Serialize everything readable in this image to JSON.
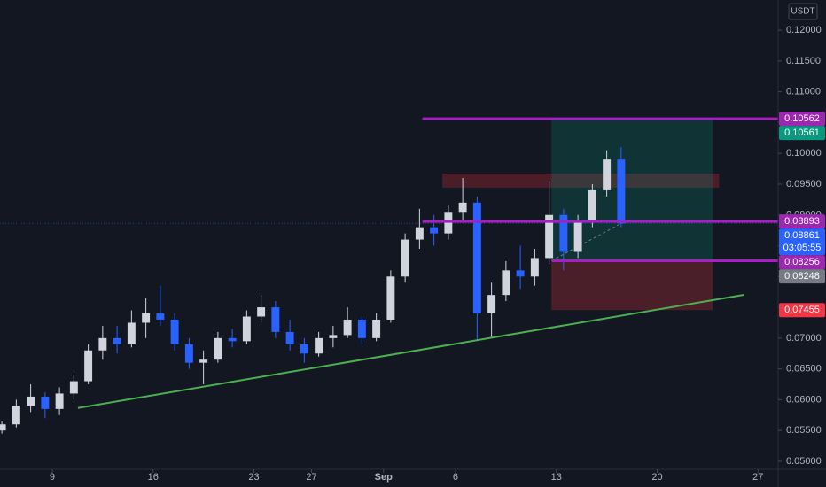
{
  "chart_data": {
    "type": "candlestick",
    "currency": "USDT",
    "x": [
      5.5,
      6.5,
      7.5,
      8.5,
      9.5,
      10.5,
      11.5,
      12.5,
      13.5,
      14.5,
      15.5,
      16.5,
      17.5,
      18.5,
      19.5,
      20.5,
      21.5,
      22.5,
      23.5,
      24.5,
      25.5,
      26.5,
      27.5,
      28.5,
      29.5,
      30.5,
      31.5,
      32.5,
      33.5,
      34.5,
      35.5,
      36.5,
      37.5,
      38.5,
      39.5,
      40.5,
      41.5,
      42.5,
      43.5,
      44.5,
      45.5,
      46.5,
      47.5,
      48.5
    ],
    "open": [
      0.055,
      0.056,
      0.059,
      0.0605,
      0.0585,
      0.061,
      0.063,
      0.068,
      0.07,
      0.069,
      0.0725,
      0.074,
      0.073,
      0.069,
      0.066,
      0.0665,
      0.07,
      0.0695,
      0.0735,
      0.075,
      0.071,
      0.069,
      0.0675,
      0.07,
      0.0705,
      0.073,
      0.07,
      0.073,
      0.08,
      0.086,
      0.088,
      0.087,
      0.0905,
      0.092,
      0.074,
      0.077,
      0.081,
      0.08,
      0.083,
      0.09,
      0.084,
      0.089,
      0.094,
      0.099
    ],
    "high": [
      0.0565,
      0.06,
      0.0625,
      0.0612,
      0.062,
      0.064,
      0.069,
      0.072,
      0.072,
      0.0745,
      0.0765,
      0.0785,
      0.074,
      0.07,
      0.068,
      0.071,
      0.0715,
      0.0745,
      0.077,
      0.076,
      0.073,
      0.07,
      0.071,
      0.072,
      0.075,
      0.0735,
      0.074,
      0.081,
      0.087,
      0.091,
      0.09,
      0.0915,
      0.096,
      0.093,
      0.079,
      0.0825,
      0.085,
      0.0845,
      0.0955,
      0.091,
      0.09,
      0.095,
      0.1005,
      0.101
    ],
    "low": [
      0.0545,
      0.0555,
      0.058,
      0.057,
      0.0575,
      0.06,
      0.0625,
      0.0665,
      0.0675,
      0.0685,
      0.07,
      0.072,
      0.068,
      0.065,
      0.0625,
      0.066,
      0.0685,
      0.069,
      0.0725,
      0.07,
      0.068,
      0.066,
      0.067,
      0.0685,
      0.07,
      0.069,
      0.0695,
      0.0725,
      0.079,
      0.0845,
      0.085,
      0.086,
      0.089,
      0.0695,
      0.07,
      0.076,
      0.078,
      0.0785,
      0.082,
      0.081,
      0.083,
      0.088,
      0.093,
      0.088
    ],
    "close": [
      0.056,
      0.059,
      0.0605,
      0.0585,
      0.061,
      0.063,
      0.068,
      0.07,
      0.069,
      0.0725,
      0.074,
      0.073,
      0.069,
      0.066,
      0.0665,
      0.07,
      0.0695,
      0.0735,
      0.075,
      0.071,
      0.069,
      0.0675,
      0.07,
      0.0705,
      0.073,
      0.07,
      0.073,
      0.08,
      0.086,
      0.088,
      0.087,
      0.0905,
      0.092,
      0.074,
      0.077,
      0.081,
      0.08,
      0.083,
      0.09,
      0.084,
      0.089,
      0.094,
      0.099,
      0.08861
    ],
    "up_color": "#d1d4dc",
    "down_color": "#2962ff",
    "xlim": [
      5.37,
      59.4
    ],
    "xticks": [
      {
        "value": 9,
        "label": "9"
      },
      16,
      23,
      27,
      {
        "value": 32,
        "label": "Sep"
      },
      {
        "value": 37,
        "label": "6"
      },
      {
        "value": 44,
        "label": "13"
      },
      {
        "value": 51,
        "label": "20"
      },
      {
        "value": 58,
        "label": "27"
      }
    ],
    "ylim": [
      0.0487,
      0.1249
    ],
    "yticks": [
      {
        "value": 0.05,
        "label": "0.05000"
      },
      {
        "value": 0.055,
        "label": "0.05500"
      },
      {
        "value": 0.06,
        "label": "0.06000"
      },
      {
        "value": 0.065,
        "label": "0.06500"
      },
      {
        "value": 0.07,
        "label": "0.07000"
      },
      {
        "value": 0.075,
        "label": "0.07500"
      },
      {
        "value": 0.08,
        "label": "0.08000"
      },
      {
        "value": 0.085,
        "label": "0.08500"
      },
      {
        "value": 0.09,
        "label": "0.09000"
      },
      {
        "value": 0.095,
        "label": "0.09500"
      },
      {
        "value": 0.1,
        "label": "0.10000"
      },
      {
        "value": 0.105,
        "label": "0.10500"
      },
      {
        "value": 0.11,
        "label": "0.11000"
      },
      {
        "value": 0.115,
        "label": "0.11500"
      },
      {
        "value": 0.12,
        "label": "0.12000"
      }
    ],
    "grid": false,
    "hlines": [
      {
        "value": 0.10562,
        "x_start": 34.7,
        "color": "#a61fc4"
      },
      {
        "value": 0.08893,
        "x_start": 34.7,
        "color": "#a61fc4"
      },
      {
        "value": 0.08256,
        "x_start": 43.7,
        "color": "#a61fc4"
      }
    ],
    "trendline": {
      "x": [
        10.78,
        57.06
      ],
      "y": [
        0.05865,
        0.07704
      ],
      "color": "#4caf50"
    },
    "zone": {
      "x": [
        36.08,
        55.3
      ],
      "y": [
        0.09443,
        0.09672
      ],
      "color": "rgba(178,40,51,0.35)"
    },
    "position": {
      "x": [
        43.66,
        54.86
      ],
      "entry": 0.08256,
      "target": 0.10561,
      "stop": 0.07455,
      "profit_color": "rgba(8,153,129,0.22)",
      "loss_color": "rgba(242,54,69,0.25)"
    },
    "price_labels": [
      {
        "value": 0.10562,
        "color": "#9c27b0"
      },
      {
        "value": 0.10561,
        "color": "#089981"
      },
      {
        "value": 0.08893,
        "color": "#9c27b0"
      },
      {
        "value": 0.08861,
        "color": "#2962ff",
        "countdown": "03:05:55"
      },
      {
        "value": 0.08256,
        "color": "#9c27b0"
      },
      {
        "value": 0.08248,
        "color": "#787b86"
      },
      {
        "value": 0.07455,
        "color": "#f23645"
      }
    ]
  }
}
